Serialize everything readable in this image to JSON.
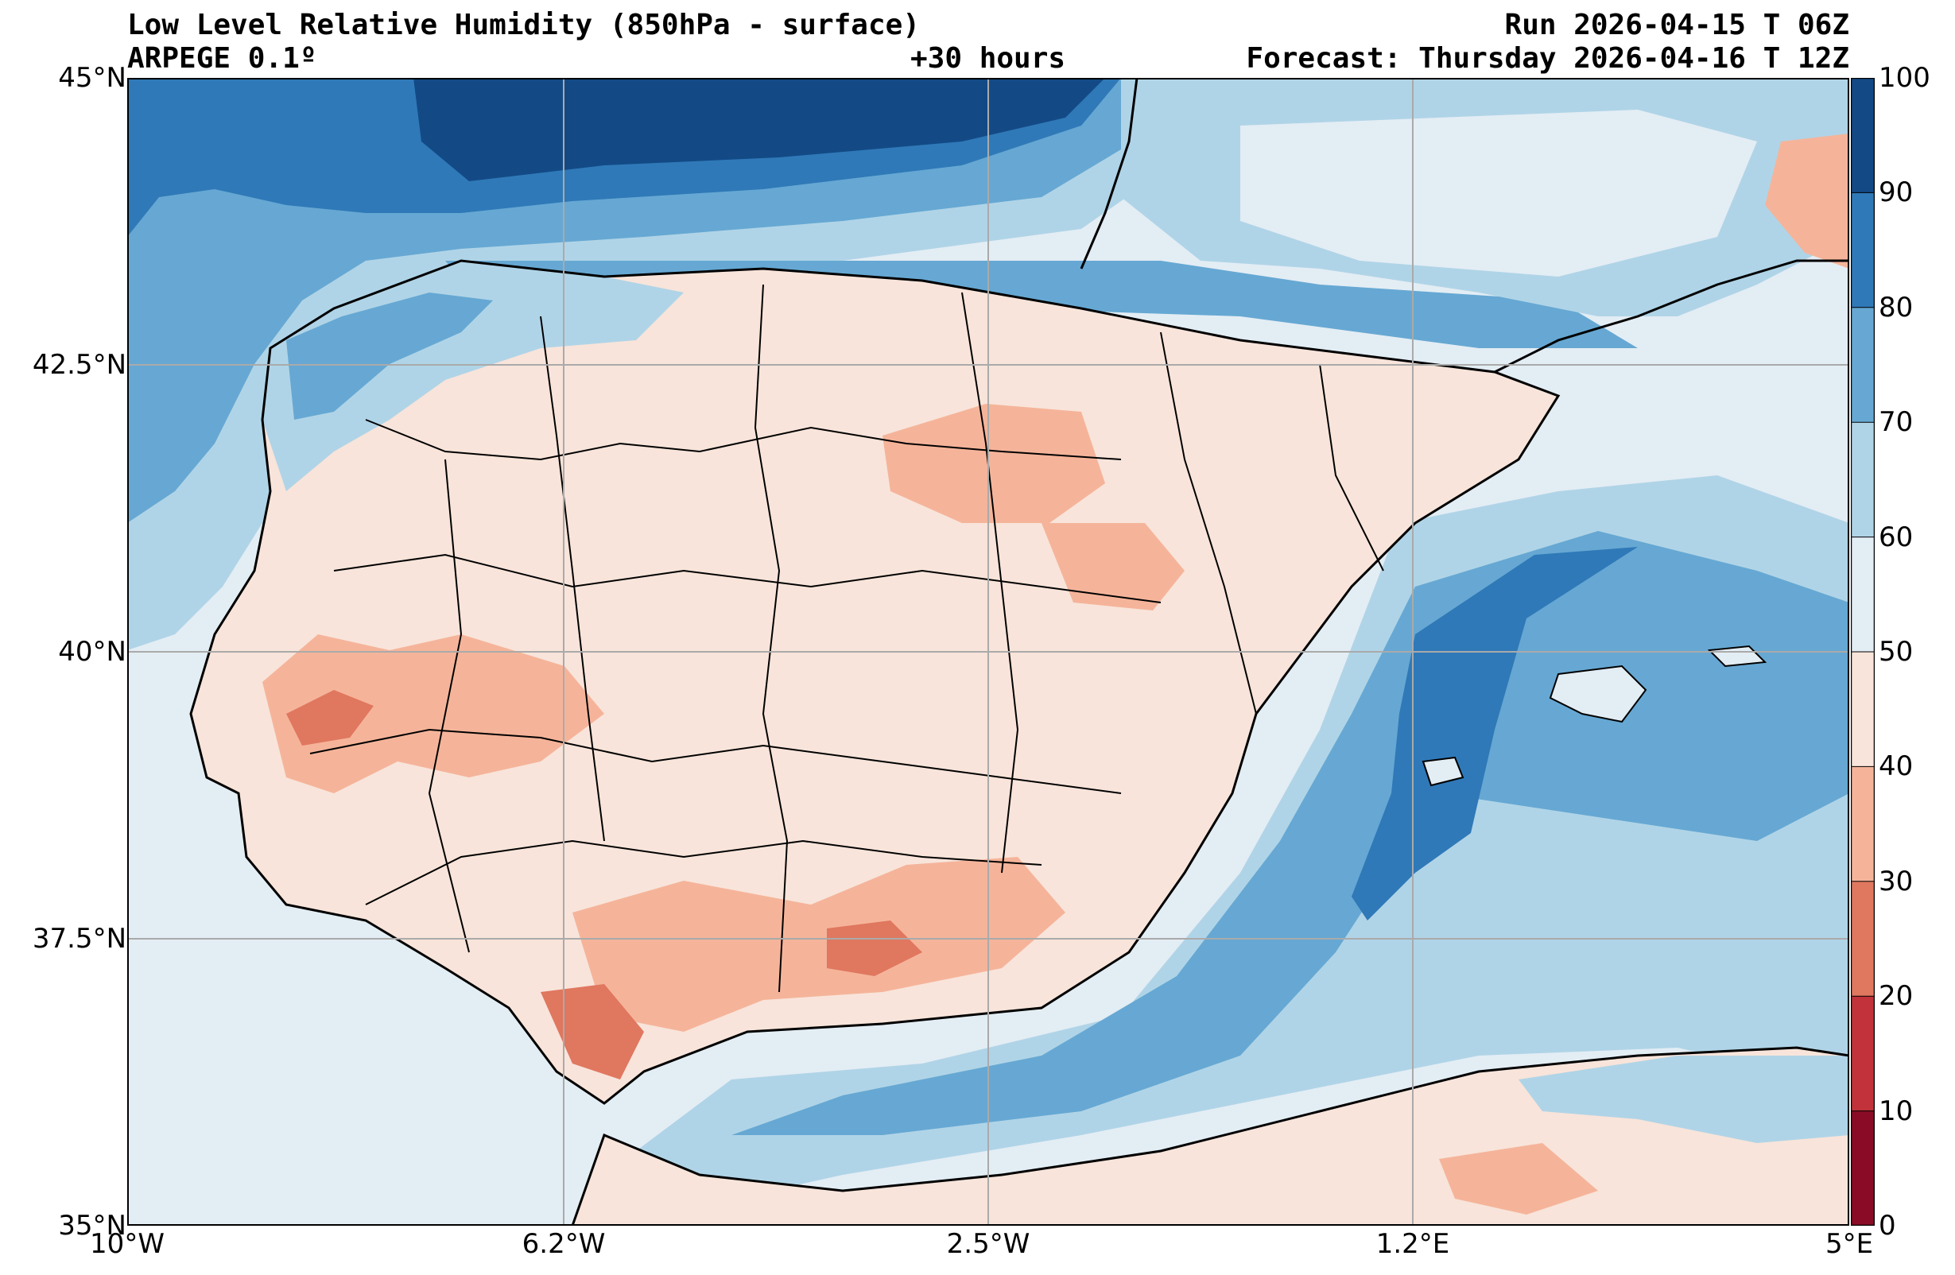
{
  "header": {
    "title_left": "Low Level Relative Humidity (850hPa - surface)",
    "model": "ARPEGE 0.1º",
    "lead_time": "+30 hours",
    "run": "Run 2026-04-15 T 06Z",
    "forecast": "Forecast: Thursday 2026-04-16 T 12Z"
  },
  "axes": {
    "lat_labels": [
      "45°N",
      "42.5°N",
      "40°N",
      "37.5°N",
      "35°N"
    ],
    "lon_labels": [
      "10°W",
      "6.2°W",
      "2.5°W",
      "1.2°E",
      "5°E"
    ]
  },
  "colorbar": {
    "ticks": [
      "100",
      "90",
      "80",
      "70",
      "60",
      "50",
      "40",
      "30",
      "20",
      "10",
      "0"
    ],
    "colors": [
      "#134a86",
      "#2f79b8",
      "#66a8d3",
      "#b0d4e7",
      "#e3edf4",
      "#f8e4da",
      "#f5b49a",
      "#e0775f",
      "#c1323a",
      "#8a0b25"
    ]
  },
  "map": {
    "sea_color": "#e3edf4",
    "land_color": "#f8e4da",
    "border_color": "#000000",
    "grid_color": "#aaaaaa"
  }
}
